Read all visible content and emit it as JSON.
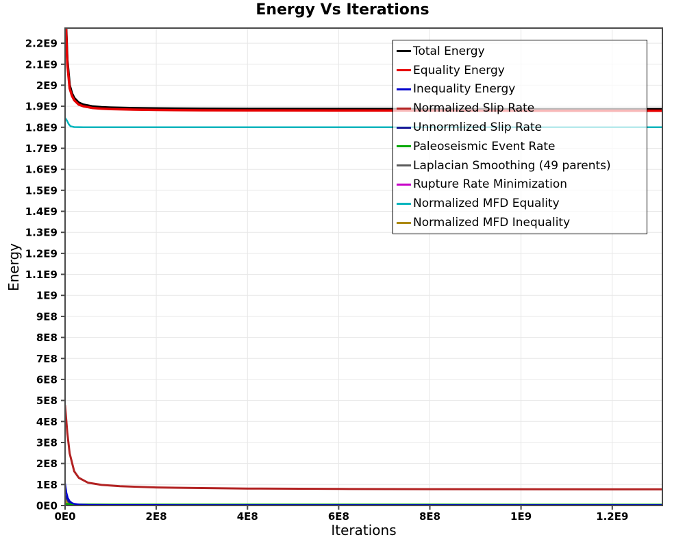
{
  "chart_data": {
    "type": "line",
    "title": "Energy Vs Iterations",
    "xlabel": "Iterations",
    "ylabel": "Energy",
    "xlim": [
      0,
      1310000000
    ],
    "ylim": [
      0,
      2272000000
    ],
    "grid": true,
    "grid_color": "#e7e7e7",
    "frame_color": "#4a4a4a",
    "legend_position": "top-right-inside",
    "x_ticks": [
      {
        "value": 0,
        "label": "0E0"
      },
      {
        "value": 200000000,
        "label": "2E8"
      },
      {
        "value": 400000000,
        "label": "4E8"
      },
      {
        "value": 600000000,
        "label": "6E8"
      },
      {
        "value": 800000000,
        "label": "8E8"
      },
      {
        "value": 1000000000,
        "label": "1E9"
      },
      {
        "value": 1200000000,
        "label": "1.2E9"
      }
    ],
    "y_ticks": [
      {
        "value": 0,
        "label": "0E0"
      },
      {
        "value": 100000000,
        "label": "1E8"
      },
      {
        "value": 200000000,
        "label": "2E8"
      },
      {
        "value": 300000000,
        "label": "3E8"
      },
      {
        "value": 400000000,
        "label": "4E8"
      },
      {
        "value": 500000000,
        "label": "5E8"
      },
      {
        "value": 600000000,
        "label": "6E8"
      },
      {
        "value": 700000000,
        "label": "7E8"
      },
      {
        "value": 800000000,
        "label": "8E8"
      },
      {
        "value": 900000000,
        "label": "9E8"
      },
      {
        "value": 1000000000,
        "label": "1E9"
      },
      {
        "value": 1100000000,
        "label": "1.1E9"
      },
      {
        "value": 1200000000,
        "label": "1.2E9"
      },
      {
        "value": 1300000000,
        "label": "1.3E9"
      },
      {
        "value": 1400000000,
        "label": "1.4E9"
      },
      {
        "value": 1500000000,
        "label": "1.5E9"
      },
      {
        "value": 1600000000,
        "label": "1.6E9"
      },
      {
        "value": 1700000000,
        "label": "1.7E9"
      },
      {
        "value": 1800000000,
        "label": "1.8E9"
      },
      {
        "value": 1900000000,
        "label": "1.9E9"
      },
      {
        "value": 2000000000,
        "label": "2E9"
      },
      {
        "value": 2100000000,
        "label": "2.1E9"
      },
      {
        "value": 2200000000,
        "label": "2.2E9"
      }
    ],
    "series": [
      {
        "name": "Total Energy",
        "color": "#000000",
        "width": 3.5,
        "zorder": 9,
        "points": [
          [
            0,
            2620000000.0
          ],
          [
            2000000.0,
            2300000000.0
          ],
          [
            5000000.0,
            2120000000.0
          ],
          [
            10000000.0,
            2000000000.0
          ],
          [
            15000000.0,
            1962000000.0
          ],
          [
            20000000.0,
            1940000000.0
          ],
          [
            30000000.0,
            1917000000.0
          ],
          [
            40000000.0,
            1908000000.0
          ],
          [
            60000000.0,
            1899000000.0
          ],
          [
            80000000.0,
            1895500000.0
          ],
          [
            100000000.0,
            1893500000.0
          ],
          [
            150000000.0,
            1891000000.0
          ],
          [
            200000000.0,
            1889500000.0
          ],
          [
            300000000.0,
            1888000000.0
          ],
          [
            400000000.0,
            1887500000.0
          ],
          [
            600000000.0,
            1887000000.0
          ],
          [
            800000000.0,
            1886500000.0
          ],
          [
            1000000000.0,
            1886000000.0
          ],
          [
            1200000000.0,
            1886000000.0
          ],
          [
            1310000000.0,
            1886000000.0
          ]
        ]
      },
      {
        "name": "Equality Energy",
        "color": "#e60000",
        "width": 3.5,
        "zorder": 10,
        "points": [
          [
            0,
            2600000000.0
          ],
          [
            2000000.0,
            2280000000.0
          ],
          [
            5000000.0,
            2100000000.0
          ],
          [
            10000000.0,
            1985000000.0
          ],
          [
            15000000.0,
            1950000000.0
          ],
          [
            20000000.0,
            1929000000.0
          ],
          [
            30000000.0,
            1908000000.0
          ],
          [
            40000000.0,
            1900000000.0
          ],
          [
            60000000.0,
            1892000000.0
          ],
          [
            80000000.0,
            1888500000.0
          ],
          [
            100000000.0,
            1886500000.0
          ],
          [
            150000000.0,
            1884000000.0
          ],
          [
            200000000.0,
            1882500000.0
          ],
          [
            300000000.0,
            1881000000.0
          ],
          [
            400000000.0,
            1880500000.0
          ],
          [
            600000000.0,
            1880000000.0
          ],
          [
            800000000.0,
            1879500000.0
          ],
          [
            1000000000.0,
            1879000000.0
          ],
          [
            1200000000.0,
            1879000000.0
          ],
          [
            1310000000.0,
            1879000000.0
          ]
        ]
      },
      {
        "name": "Inequality Energy",
        "color": "#0000cd",
        "width": 2.5,
        "zorder": 6,
        "points": [
          [
            0,
            105000000.0
          ],
          [
            3000000.0,
            60000000.0
          ],
          [
            6000000.0,
            36000000.0
          ],
          [
            10000000.0,
            21000000.0
          ],
          [
            15000000.0,
            12000000.0
          ],
          [
            20000000.0,
            8000000.0
          ],
          [
            30000000.0,
            5000000.0
          ],
          [
            50000000.0,
            3400000.0
          ],
          [
            100000000.0,
            2600000.0
          ],
          [
            200000000.0,
            2200000.0
          ],
          [
            400000000.0,
            2000000.0
          ],
          [
            800000000.0,
            1900000.0
          ],
          [
            1310000000.0,
            1900000.0
          ]
        ]
      },
      {
        "name": "Normalized Slip Rate",
        "color": "#b22222",
        "width": 3,
        "zorder": 7,
        "points": [
          [
            0,
            476000000.0
          ],
          [
            5000000.0,
            345000000.0
          ],
          [
            10000000.0,
            248000000.0
          ],
          [
            20000000.0,
            163000000.0
          ],
          [
            30000000.0,
            132000000.0
          ],
          [
            50000000.0,
            109000000.0
          ],
          [
            80000000.0,
            98000000.0
          ],
          [
            120000000.0,
            92000000.0
          ],
          [
            200000000.0,
            86000000.0
          ],
          [
            300000000.0,
            83000000.0
          ],
          [
            400000000.0,
            81000000.0
          ],
          [
            600000000.0,
            79000000.0
          ],
          [
            800000000.0,
            78000000.0
          ],
          [
            1000000000.0,
            77500000.0
          ],
          [
            1310000000.0,
            77000000.0
          ]
        ]
      },
      {
        "name": "Unnormlized Slip Rate",
        "color": "#1c1c99",
        "width": 2.5,
        "zorder": 1,
        "points": [
          [
            0,
            50000000.0
          ],
          [
            5000000.0,
            24000000.0
          ],
          [
            10000000.0,
            12000000.0
          ],
          [
            20000000.0,
            5000000.0
          ],
          [
            40000000.0,
            2500000.0
          ],
          [
            100000000.0,
            1500000.0
          ],
          [
            1310000000.0,
            1400000.0
          ]
        ]
      },
      {
        "name": "Paleoseismic Event Rate",
        "color": "#00a800",
        "width": 2.5,
        "zorder": 5,
        "points": [
          [
            0,
            8000000.0
          ],
          [
            20000000.0,
            5500000.0
          ],
          [
            100000000.0,
            4800000.0
          ],
          [
            1310000000.0,
            4600000.0
          ]
        ]
      },
      {
        "name": "Laplacian Smoothing (49 parents)",
        "color": "#5a5a5a",
        "width": 2,
        "zorder": 2,
        "points": [
          [
            0,
            3000000.0
          ],
          [
            20000000.0,
            1500000.0
          ],
          [
            100000000.0,
            1000000.0
          ],
          [
            1310000000.0,
            900000.0
          ]
        ]
      },
      {
        "name": "Rupture Rate Minimization",
        "color": "#c800c8",
        "width": 2,
        "zorder": 3,
        "points": [
          [
            0,
            1500000.0
          ],
          [
            20000000.0,
            800000.0
          ],
          [
            1310000000.0,
            500000.0
          ]
        ]
      },
      {
        "name": "Normalized MFD Equality",
        "color": "#00b4bc",
        "width": 2.5,
        "zorder": 8,
        "points": [
          [
            0,
            1845000000.0
          ],
          [
            4000000.0,
            1832000000.0
          ],
          [
            8000000.0,
            1815000000.0
          ],
          [
            12000000.0,
            1805000000.0
          ],
          [
            20000000.0,
            1801000000.0
          ],
          [
            40000000.0,
            1800000000.0
          ],
          [
            1310000000.0,
            1800000000.0
          ]
        ]
      },
      {
        "name": "Normalized MFD Inequality",
        "color": "#ad8a14",
        "width": 2.5,
        "zorder": 4,
        "points": [
          [
            0,
            30000000.0
          ],
          [
            4000000.0,
            14000000.0
          ],
          [
            8000000.0,
            6000000.0
          ],
          [
            15000000.0,
            2500000.0
          ],
          [
            30000000.0,
            1000000.0
          ],
          [
            100000000.0,
            500000.0
          ],
          [
            1310000000.0,
            400000.0
          ]
        ]
      }
    ]
  }
}
